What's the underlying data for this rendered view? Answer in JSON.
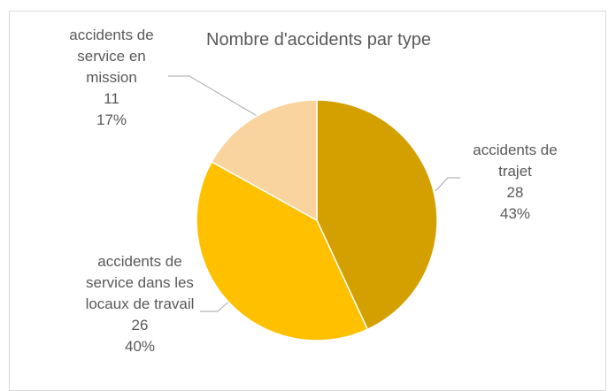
{
  "chart_data": {
    "type": "pie",
    "title": "Nombre d'accidents par type",
    "categories": [
      "accidents de trajet",
      "accidents de service dans les locaux de travail",
      "accidents de service en mission"
    ],
    "values": [
      28,
      26,
      11
    ],
    "percent_labels": [
      "43%",
      "40%",
      "17%"
    ],
    "colors": [
      "#D4A000",
      "#FFC000",
      "#F9D49E"
    ]
  }
}
